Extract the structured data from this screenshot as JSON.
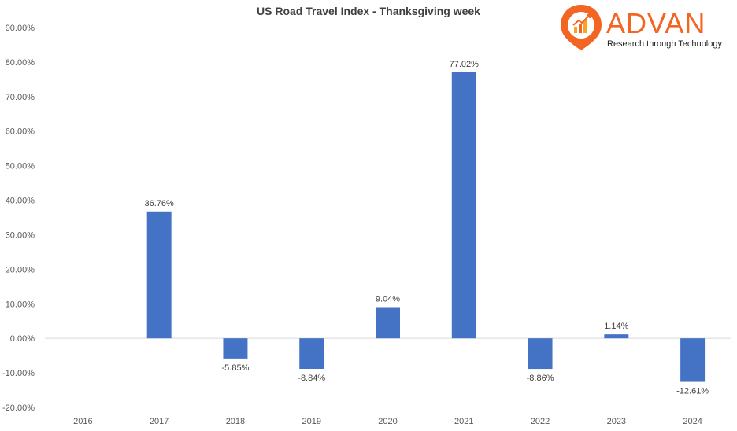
{
  "logo": {
    "word": "ADVAN",
    "tagline": "Research through Technology",
    "color": "#f26522"
  },
  "chart_data": {
    "type": "bar",
    "title": "US Road Travel Index  - Thanksgiving week",
    "categories": [
      "2016",
      "2017",
      "2018",
      "2019",
      "2020",
      "2021",
      "2022",
      "2023",
      "2024"
    ],
    "values": [
      null,
      36.76,
      -5.85,
      -8.84,
      9.04,
      77.02,
      -8.86,
      1.14,
      -12.61
    ],
    "data_labels": [
      "",
      "36.76%",
      "-5.85%",
      "-8.84%",
      "9.04%",
      "77.02%",
      "-8.86%",
      "1.14%",
      "-12.61%"
    ],
    "y_ticks": [
      90,
      80,
      70,
      60,
      50,
      40,
      30,
      20,
      10,
      0,
      -10,
      -20
    ],
    "y_tick_labels": [
      "90.00%",
      "80.00%",
      "70.00%",
      "60.00%",
      "50.00%",
      "40.00%",
      "30.00%",
      "20.00%",
      "10.00%",
      "0.00%",
      "-10.00%",
      "-20.00%"
    ],
    "ylim": [
      -20,
      90
    ],
    "grid": false,
    "bar_color": "#4472c4",
    "xlabel": "",
    "ylabel": ""
  }
}
